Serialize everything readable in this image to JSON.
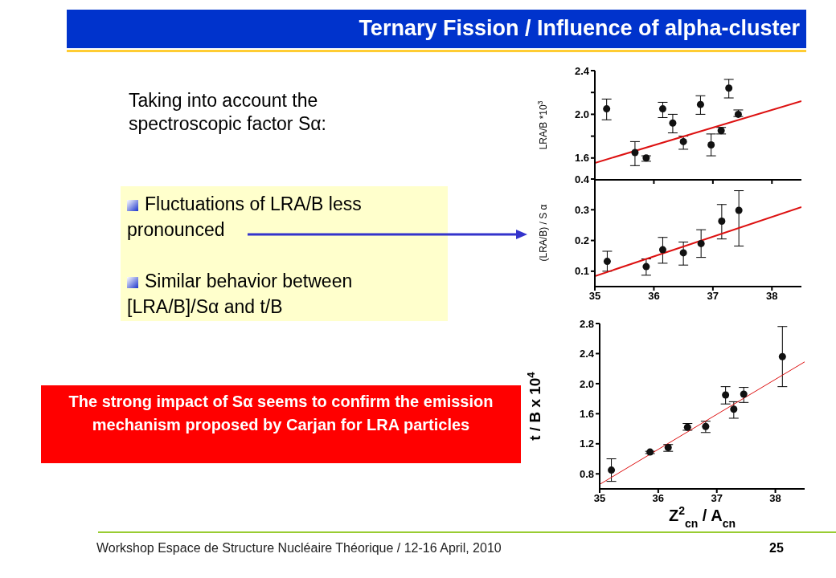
{
  "chart_data": [
    {
      "type": "other",
      "title": "Ternary Fission / Influence of alpha-cluster",
      "annotations": [
        "Taking into account the spectroscopic factor Sα:",
        "Fluctuations of LRA/B less pronounced",
        "Similar behavior between [LRA/B]/Sα and t/B",
        "The strong impact of Sα seems to confirm the emission mechanism proposed by Carjan for LRA particles",
        "Workshop Espace de Structure Nucléaire Théorique / 12-16 April, 2010",
        "25"
      ]
    },
    {
      "type": "scatter",
      "ylabel": "LRA/B *10$^{3}$",
      "xlim": [
        35,
        38.5
      ],
      "ylim": [
        1.4,
        2.4
      ],
      "xticks": [
        {
          "value": 35,
          "label": null
        },
        {
          "value": 36,
          "label": null
        },
        {
          "value": 37,
          "label": null
        },
        {
          "value": 38,
          "label": null
        }
      ],
      "yticks": [
        {
          "value": 1.6,
          "label": "1.6"
        },
        {
          "value": 1.8,
          "label": null
        },
        {
          "value": 2.0,
          "label": "2.0"
        },
        {
          "value": 2.2,
          "label": null
        },
        {
          "value": 2.4,
          "label": "2.4"
        }
      ],
      "tick_labels": "y",
      "series": [
        {
          "type": "scatter",
          "marker": "circle",
          "color": "#111111",
          "x": [
            35.2,
            35.68,
            35.87,
            36.15,
            36.32,
            36.5,
            36.79,
            36.97,
            37.14,
            37.27,
            37.43
          ],
          "values": [
            2.05,
            1.65,
            1.6,
            2.05,
            1.92,
            1.75,
            2.09,
            1.72,
            1.85,
            2.24,
            2.0
          ],
          "errors": [
            [
              1.95,
              2.14
            ],
            [
              1.53,
              1.75
            ],
            [
              1.57,
              1.62
            ],
            [
              1.97,
              2.11
            ],
            [
              1.83,
              2.0
            ],
            [
              1.68,
              1.8
            ],
            [
              2.0,
              2.17
            ],
            [
              1.62,
              1.82
            ],
            [
              1.82,
              1.88
            ],
            [
              2.15,
              2.32
            ],
            [
              1.98,
              2.04
            ]
          ]
        },
        {
          "type": "line",
          "color": "#dd1111",
          "x": [
            35,
            38.5
          ],
          "values": [
            1.555,
            2.12
          ]
        }
      ]
    },
    {
      "type": "scatter",
      "ylabel": "(LRA/B) / S α",
      "xlim": [
        35,
        38.5
      ],
      "ylim": [
        0.05,
        0.4
      ],
      "xticks": [
        35,
        36,
        37,
        38
      ],
      "yticks": [
        0.1,
        0.2,
        0.3,
        0.4
      ],
      "series": [
        {
          "type": "scatter",
          "marker": "circle",
          "color": "#111111",
          "x": [
            35.21,
            35.87,
            36.15,
            36.5,
            36.8,
            37.15,
            37.44
          ],
          "values": [
            0.132,
            0.115,
            0.17,
            0.16,
            0.19,
            0.263,
            0.298
          ],
          "errors": [
            [
              0.1,
              0.165
            ],
            [
              0.087,
              0.14
            ],
            [
              0.126,
              0.21
            ],
            [
              0.12,
              0.195
            ],
            [
              0.145,
              0.235
            ],
            [
              0.205,
              0.317
            ],
            [
              0.182,
              0.362
            ]
          ]
        },
        {
          "type": "line",
          "color": "#dd1111",
          "x": [
            35,
            38.5
          ],
          "values": [
            0.084,
            0.309
          ]
        }
      ]
    },
    {
      "type": "scatter",
      "ylabel": "t / B x 10$^{4}$",
      "xlabel": "Z$^{2}$$_{cn}$ / A$_{cn}$",
      "xlim": [
        35,
        38.5
      ],
      "ylim": [
        0.6,
        2.8
      ],
      "xticks": [
        35,
        36,
        37,
        38
      ],
      "yticks": [
        {
          "value": 0.8,
          "label": "0.8"
        },
        {
          "value": 1.2,
          "label": "1.2"
        },
        {
          "value": 1.6,
          "label": "1.6"
        },
        {
          "value": 2.0,
          "label": "2.0"
        },
        {
          "value": 2.4,
          "label": "2.4"
        },
        {
          "value": 2.8,
          "label": "2.8"
        }
      ],
      "series": [
        {
          "type": "scatter",
          "marker": "circle",
          "color": "#111111",
          "x": [
            35.2,
            35.86,
            36.17,
            36.5,
            36.81,
            37.15,
            37.29,
            37.46,
            38.12
          ],
          "values": [
            0.85,
            1.09,
            1.15,
            1.42,
            1.43,
            1.85,
            1.66,
            1.86,
            2.36
          ],
          "errors": [
            [
              0.7,
              1.0
            ],
            [
              1.07,
              1.1
            ],
            [
              1.1,
              1.19
            ],
            [
              1.38,
              1.47
            ],
            [
              1.35,
              1.5
            ],
            [
              1.73,
              1.96
            ],
            [
              1.54,
              1.76
            ],
            [
              1.75,
              1.95
            ],
            [
              1.96,
              2.76
            ]
          ]
        },
        {
          "type": "line",
          "color": "#dd1111",
          "x": [
            35,
            38.5
          ],
          "values": [
            0.66,
            2.29
          ]
        }
      ]
    }
  ]
}
